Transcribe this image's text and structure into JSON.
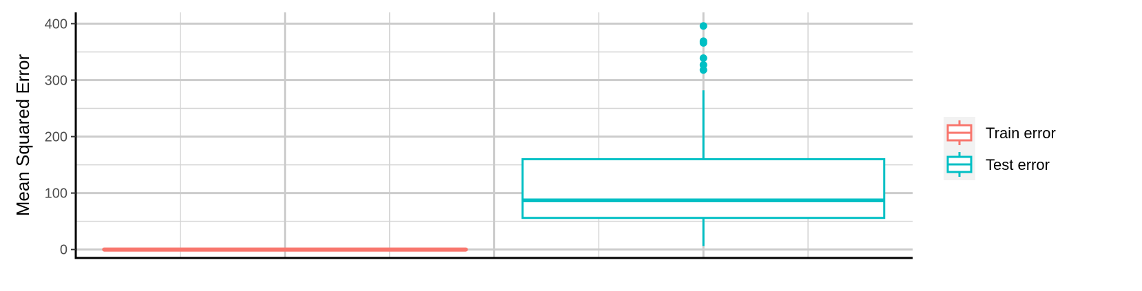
{
  "chart_data": {
    "type": "boxplot",
    "title": "",
    "xlabel": "",
    "ylabel": "Mean Squared Error",
    "ylim": [
      -15,
      420
    ],
    "yticks": [
      0,
      100,
      200,
      300,
      400
    ],
    "grid": true,
    "legend_position": "right",
    "series": [
      {
        "name": "Train error",
        "color": "#F8766D",
        "min": 0,
        "q1": 0,
        "median": 0,
        "q3": 0,
        "max": 0,
        "outliers": []
      },
      {
        "name": "Test error",
        "color": "#00BFC4",
        "min": 6,
        "q1": 56,
        "median": 87,
        "q3": 160,
        "max": 282,
        "outliers": [
          318,
          327,
          339,
          366,
          369,
          396
        ]
      }
    ]
  }
}
